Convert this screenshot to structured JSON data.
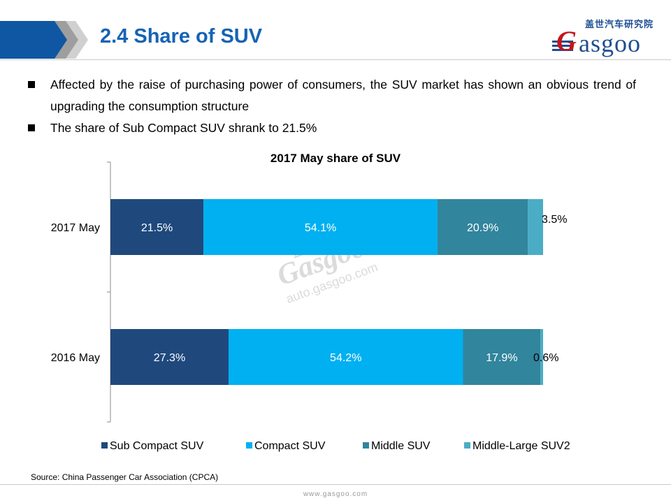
{
  "header": {
    "title": "2.4 Share of SUV",
    "logo_cn": "盖世汽车研究院",
    "logo_text": "Gasgoo"
  },
  "bullets": [
    "Affected by the raise of purchasing power of consumers, the SUV market has shown an obvious trend of upgrading the consumption structure",
    "The share of Sub Compact SUV shrank to 21.5%"
  ],
  "watermark": {
    "cn": "盖 世 汽 车",
    "logo": "Gasgoo",
    "url": "auto.gasgoo.com"
  },
  "source": "Source: China Passenger Car Association (CPCA)",
  "footer_url": "www.gasgoo.com",
  "chart_data": {
    "type": "bar",
    "orientation": "horizontal",
    "stacked": true,
    "title": "2017 May share of SUV",
    "categories": [
      "2017 May",
      "2016 May"
    ],
    "series": [
      {
        "name": "Sub Compact SUV",
        "values": [
          21.5,
          27.3
        ],
        "labels": [
          "21.5%",
          "27.3%"
        ],
        "color": "#1f497d"
      },
      {
        "name": "Compact SUV",
        "values": [
          54.1,
          54.2
        ],
        "labels": [
          "54.1%",
          "54.2%"
        ],
        "color": "#00b0f0"
      },
      {
        "name": "Middle SUV",
        "values": [
          20.9,
          17.9
        ],
        "labels": [
          "20.9%",
          "17.9%"
        ],
        "color": "#31859c"
      },
      {
        "name": "Middle-Large SUV2",
        "values": [
          3.5,
          0.6
        ],
        "labels": [
          "3.5%",
          "0.6%"
        ],
        "color": "#4bacc6"
      }
    ],
    "xlim": [
      0,
      100
    ],
    "grid": false,
    "legend": "bottom"
  }
}
